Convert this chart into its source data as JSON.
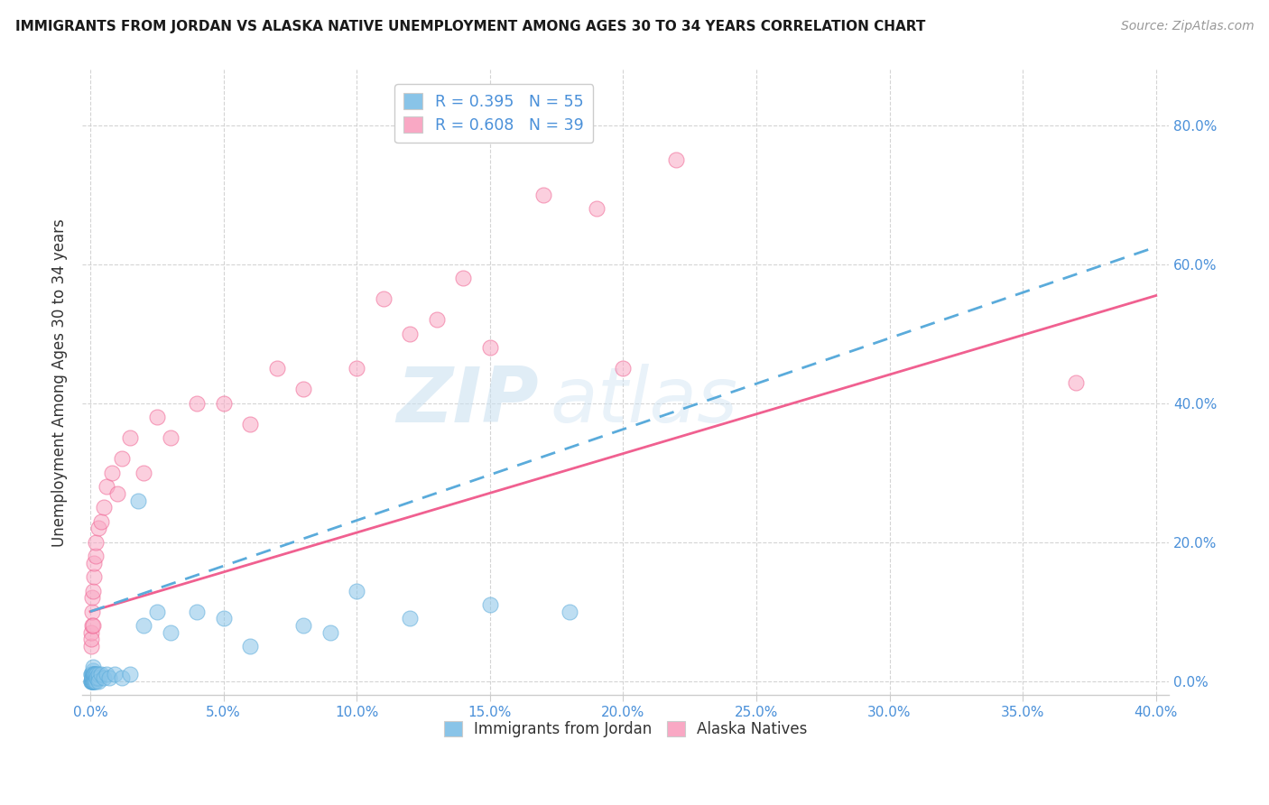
{
  "title": "IMMIGRANTS FROM JORDAN VS ALASKA NATIVE UNEMPLOYMENT AMONG AGES 30 TO 34 YEARS CORRELATION CHART",
  "source": "Source: ZipAtlas.com",
  "ylabel_label": "Unemployment Among Ages 30 to 34 years",
  "xlim": [
    -0.003,
    0.405
  ],
  "ylim": [
    -0.02,
    0.88
  ],
  "xlabel_ticks": [
    0.0,
    0.05,
    0.1,
    0.15,
    0.2,
    0.25,
    0.3,
    0.35,
    0.4
  ],
  "ylabel_ticks": [
    0.0,
    0.2,
    0.4,
    0.6,
    0.8
  ],
  "legend_r1": "R = 0.395",
  "legend_n1": "N = 55",
  "legend_r2": "R = 0.608",
  "legend_n2": "N = 39",
  "legend_label1": "Immigrants from Jordan",
  "legend_label2": "Alaska Natives",
  "color_jordan": "#89c4e8",
  "color_alaska": "#f9a8c4",
  "color_jordan_line": "#5aabdb",
  "color_alaska_line": "#f06090",
  "watermark_zip": "ZIP",
  "watermark_atlas": "atlas",
  "jordan_x": [
    0.0002,
    0.0003,
    0.0003,
    0.0005,
    0.0005,
    0.0006,
    0.0006,
    0.0007,
    0.0007,
    0.0008,
    0.0008,
    0.0009,
    0.0009,
    0.001,
    0.001,
    0.001,
    0.001,
    0.001,
    0.0012,
    0.0012,
    0.0013,
    0.0014,
    0.0015,
    0.0015,
    0.0016,
    0.0017,
    0.0018,
    0.002,
    0.002,
    0.0022,
    0.0023,
    0.0025,
    0.003,
    0.003,
    0.0032,
    0.004,
    0.005,
    0.006,
    0.007,
    0.009,
    0.012,
    0.015,
    0.018,
    0.02,
    0.025,
    0.03,
    0.04,
    0.05,
    0.06,
    0.08,
    0.09,
    0.1,
    0.12,
    0.15,
    0.18
  ],
  "jordan_y": [
    0.0,
    0.0,
    0.01,
    0.0,
    0.01,
    0.0,
    0.01,
    0.0,
    0.005,
    0.0,
    0.005,
    0.0,
    0.01,
    0.0,
    0.005,
    0.01,
    0.015,
    0.02,
    0.0,
    0.01,
    0.005,
    0.01,
    0.0,
    0.01,
    0.005,
    0.0,
    0.01,
    0.0,
    0.01,
    0.005,
    0.01,
    0.005,
    0.005,
    0.01,
    0.0,
    0.01,
    0.005,
    0.01,
    0.005,
    0.01,
    0.005,
    0.01,
    0.26,
    0.08,
    0.1,
    0.07,
    0.1,
    0.09,
    0.05,
    0.08,
    0.07,
    0.13,
    0.09,
    0.11,
    0.1
  ],
  "alaska_x": [
    0.0002,
    0.0003,
    0.0005,
    0.0006,
    0.0007,
    0.0008,
    0.001,
    0.001,
    0.0012,
    0.0015,
    0.002,
    0.002,
    0.003,
    0.004,
    0.005,
    0.006,
    0.008,
    0.01,
    0.012,
    0.015,
    0.02,
    0.025,
    0.03,
    0.04,
    0.05,
    0.06,
    0.07,
    0.08,
    0.1,
    0.11,
    0.12,
    0.13,
    0.14,
    0.15,
    0.17,
    0.19,
    0.2,
    0.22,
    0.37
  ],
  "alaska_y": [
    0.05,
    0.07,
    0.06,
    0.08,
    0.1,
    0.12,
    0.08,
    0.13,
    0.15,
    0.17,
    0.18,
    0.2,
    0.22,
    0.23,
    0.25,
    0.28,
    0.3,
    0.27,
    0.32,
    0.35,
    0.3,
    0.38,
    0.35,
    0.4,
    0.4,
    0.37,
    0.45,
    0.42,
    0.45,
    0.55,
    0.5,
    0.52,
    0.58,
    0.48,
    0.7,
    0.68,
    0.45,
    0.75,
    0.43
  ],
  "alaska_line_x": [
    0.0,
    0.4
  ],
  "alaska_line_y": [
    0.1,
    0.555
  ],
  "jordan_line_x": [
    0.0,
    0.4
  ],
  "jordan_line_y": [
    0.1,
    0.625
  ]
}
